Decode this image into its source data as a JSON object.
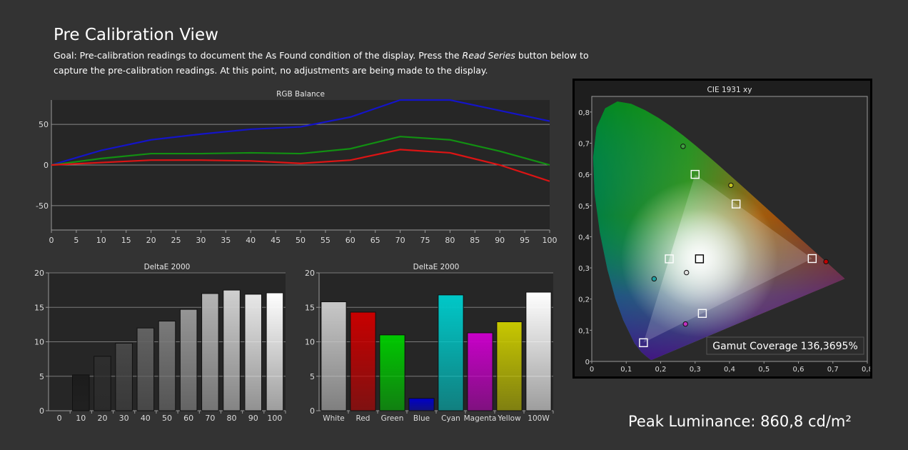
{
  "header": {
    "title": "Pre Calibration View",
    "goal_prefix": "Goal: Pre-calibration readings to document the As Found condition of the display. Press the ",
    "goal_emph": "Read Series",
    "goal_suffix": " button below to capture the pre-calibration readings. At this point, no adjustments are being made to the display."
  },
  "peak_luminance": "Peak Luminance: 860,8 cd/m²",
  "chart_data": [
    {
      "id": "rgb_balance",
      "type": "line",
      "title": "RGB Balance",
      "x": [
        0,
        10,
        20,
        30,
        40,
        50,
        60,
        70,
        80,
        90,
        100
      ],
      "xticks": [
        "0",
        "5",
        "10",
        "15",
        "20",
        "25",
        "30",
        "35",
        "40",
        "45",
        "50",
        "55",
        "60",
        "65",
        "70",
        "75",
        "80",
        "85",
        "90",
        "95",
        "100"
      ],
      "yticks": [
        "50",
        "0",
        "-50"
      ],
      "ylim": [
        -80,
        80
      ],
      "grid": true,
      "series": [
        {
          "color": "#1414c8",
          "values": [
            0,
            18,
            31,
            38,
            44,
            47,
            59,
            80,
            80,
            67,
            54
          ]
        },
        {
          "color": "#129012",
          "values": [
            0,
            8,
            14,
            14,
            15,
            14,
            20,
            35,
            31,
            17,
            0
          ]
        },
        {
          "color": "#dc1414",
          "values": [
            0,
            3,
            6,
            6,
            5,
            2,
            6,
            19,
            15,
            0,
            -20
          ]
        }
      ]
    },
    {
      "id": "deltae_grayscale",
      "type": "bar",
      "title": "DeltaE 2000",
      "categories": [
        "0",
        "10",
        "20",
        "30",
        "40",
        "50",
        "60",
        "70",
        "80",
        "90",
        "100"
      ],
      "values": [
        0,
        5.2,
        7.9,
        9.8,
        12.0,
        13.0,
        14.7,
        17.0,
        17.5,
        16.9,
        17.1
      ],
      "colors": [
        "#000000",
        "#1c1c1c",
        "#2e2e2e",
        "#484848",
        "#626262",
        "#7a7a7a",
        "#969696",
        "#b4b4b4",
        "#d0d0d0",
        "#e8e8e8",
        "#ffffff"
      ],
      "yticks": [
        "20",
        "15",
        "10",
        "5",
        "0"
      ],
      "ylim": [
        0,
        20
      ],
      "grid": true
    },
    {
      "id": "deltae_colors",
      "type": "bar",
      "title": "DeltaE 2000",
      "categories": [
        "White",
        "Red",
        "Green",
        "Blue",
        "Cyan",
        "Magenta",
        "Yellow",
        "100W"
      ],
      "values": [
        15.8,
        14.3,
        11.0,
        1.8,
        16.8,
        11.3,
        12.9,
        17.2
      ],
      "colors": [
        "#c8c8c8",
        "#c80000",
        "#00c800",
        "#0000c8",
        "#00c8c8",
        "#c800c8",
        "#c8c800",
        "#ffffff"
      ],
      "yticks": [
        "20",
        "15",
        "10",
        "5",
        "0"
      ],
      "ylim": [
        0,
        20
      ],
      "grid": true
    },
    {
      "id": "cie_1931",
      "type": "scatter",
      "title": "CIE 1931 xy",
      "xticks": [
        "0",
        "0,1",
        "0,2",
        "0,3",
        "0,4",
        "0,5",
        "0,6",
        "0,7",
        "0,8"
      ],
      "yticks": [
        "0,8",
        "0,7",
        "0,6",
        "0,5",
        "0,4",
        "0,3",
        "0,2",
        "0,1",
        "0"
      ],
      "xlim": [
        0,
        0.8
      ],
      "ylim": [
        0,
        0.85
      ],
      "target_points": [
        {
          "x": 0.64,
          "y": 0.33
        },
        {
          "x": 0.3,
          "y": 0.6
        },
        {
          "x": 0.15,
          "y": 0.06
        },
        {
          "x": 0.225,
          "y": 0.329
        },
        {
          "x": 0.419,
          "y": 0.505
        },
        {
          "x": 0.321,
          "y": 0.154
        },
        {
          "x": 0.3127,
          "y": 0.329
        }
      ],
      "measured_points": [
        {
          "x": 0.68,
          "y": 0.32
        },
        {
          "x": 0.265,
          "y": 0.69
        },
        {
          "x": 0.181,
          "y": 0.265
        },
        {
          "x": 0.404,
          "y": 0.565
        },
        {
          "x": 0.272,
          "y": 0.12
        },
        {
          "x": 0.275,
          "y": 0.285
        }
      ],
      "annotation": "Gamut Coverage 136,3695%"
    }
  ]
}
